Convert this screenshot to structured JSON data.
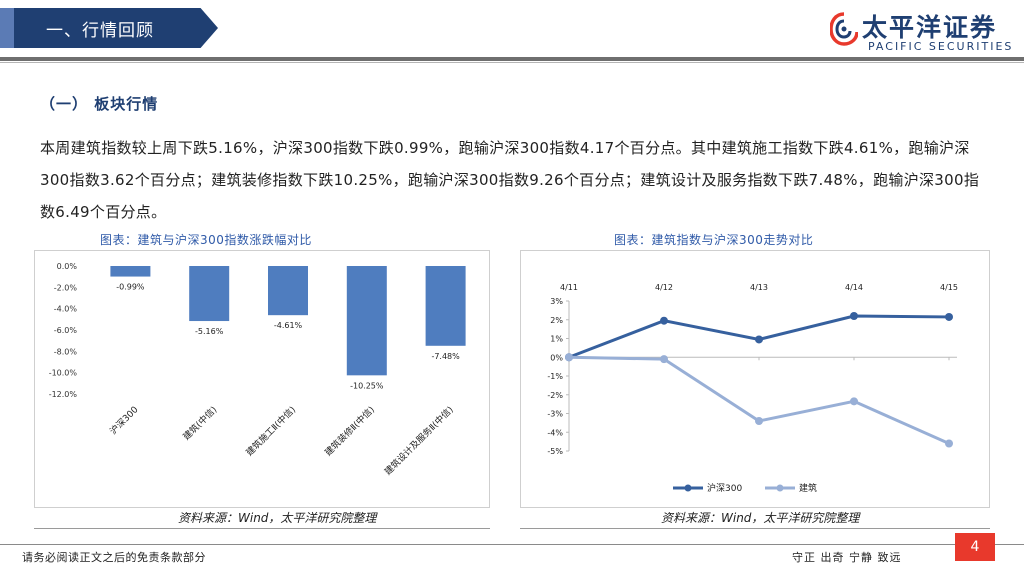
{
  "header": {
    "title": "一、行情回顾",
    "brand_cn": "太平洋证券",
    "brand_en": "PACIFIC SECURITIES"
  },
  "section": {
    "heading": "（一） 板块行情",
    "paragraph": "本周建筑指数较上周下跌5.16%，沪深300指数下跌0.99%，跑输沪深300指数4.17个百分点。其中建筑施工指数下跌4.61%，跑输沪深300指数3.62个百分点；建筑装修指数下跌10.25%，跑输沪深300指数9.26个百分点；建筑设计及服务指数下跌7.48%，跑输沪深300指数6.49个百分点。"
  },
  "charts": {
    "left_title": "图表：建筑与沪深300指数涨跌幅对比",
    "right_title": "图表：建筑指数与沪深300走势对比",
    "left_source": "资料来源：Wind，太平洋研究院整理",
    "right_source": "资料来源：Wind，太平洋研究院整理"
  },
  "chart_data": [
    {
      "type": "bar",
      "categories": [
        "沪深300",
        "建筑(中信)",
        "建筑施工Ⅱ(中信)",
        "建筑装修Ⅱ(中信)",
        "建筑设计及服务Ⅱ(中信)"
      ],
      "values": [
        -0.99,
        -5.16,
        -4.61,
        -10.25,
        -7.48
      ],
      "value_labels": [
        "-0.99%",
        "-5.16%",
        "-4.61%",
        "-10.25%",
        "-7.48%"
      ],
      "ylim": [
        -12.0,
        0.0
      ],
      "yticks": [
        0,
        -2,
        -4,
        -6,
        -8,
        -10,
        -12
      ],
      "ytick_labels": [
        "0.0%",
        "-2.0%",
        "-4.0%",
        "-6.0%",
        "-8.0%",
        "-10.0%",
        "-12.0%"
      ],
      "color": "#4f7dbf",
      "grid": false
    },
    {
      "type": "line",
      "x": [
        "4/11",
        "4/12",
        "4/13",
        "4/14",
        "4/15"
      ],
      "series": [
        {
          "name": "沪深300",
          "values": [
            0.0,
            1.95,
            0.95,
            2.2,
            2.15
          ],
          "color": "#36609e"
        },
        {
          "name": "建筑",
          "values": [
            0.0,
            -0.1,
            -3.4,
            -2.35,
            -4.6
          ],
          "color": "#98afd6"
        }
      ],
      "ylim": [
        -5,
        3
      ],
      "yticks": [
        3,
        2,
        1,
        0,
        -1,
        -2,
        -3,
        -4,
        -5
      ],
      "ytick_labels": [
        "3%",
        "2%",
        "1%",
        "0%",
        "-1%",
        "-2%",
        "-3%",
        "-4%",
        "-5%"
      ],
      "legend": "bottom",
      "grid": false
    }
  ],
  "footer": {
    "disclaimer": "请务必阅读正文之后的免责条款部分",
    "motto": "守正  出奇  宁静  致远",
    "page": "4"
  },
  "colors": {
    "brand_blue": "#1f3f72",
    "accent_red": "#e8392c"
  }
}
